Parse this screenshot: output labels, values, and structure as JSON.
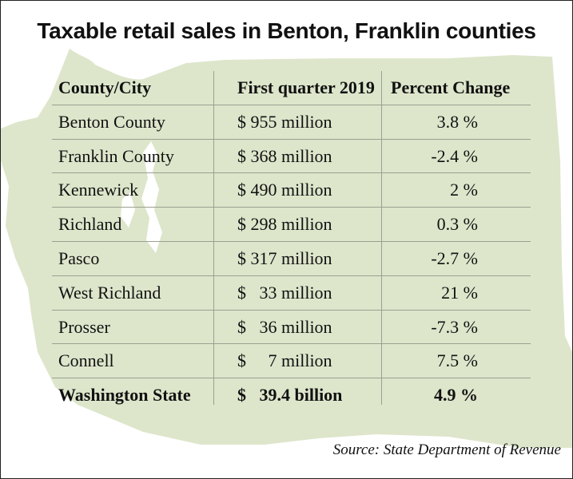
{
  "title": "Taxable retail sales in Benton, Franklin counties",
  "source": "Source: State Department of Revenue",
  "colors": {
    "map_fill": "#dde6cb",
    "rule": "#9aa08f",
    "text": "#111111"
  },
  "chart_data": {
    "type": "table",
    "columns": [
      "County/City",
      "First quarter 2019",
      "Percent Change"
    ],
    "rows": [
      {
        "name": "Benton County",
        "sales": "$ 955 million",
        "change": "3.8 %",
        "sales_value": 955,
        "sales_unit": "million",
        "change_value": 3.8
      },
      {
        "name": "Franklin County",
        "sales": "$ 368 million",
        "change": "-2.4 %",
        "sales_value": 368,
        "sales_unit": "million",
        "change_value": -2.4
      },
      {
        "name": "Kennewick",
        "sales": "$ 490 million",
        "change": "2 %",
        "sales_value": 490,
        "sales_unit": "million",
        "change_value": 2
      },
      {
        "name": "Richland",
        "sales": "$ 298 million",
        "change": "0.3 %",
        "sales_value": 298,
        "sales_unit": "million",
        "change_value": 0.3
      },
      {
        "name": "Pasco",
        "sales": "$ 317 million",
        "change": "-2.7 %",
        "sales_value": 317,
        "sales_unit": "million",
        "change_value": -2.7
      },
      {
        "name": "West Richland",
        "sales": "$   33 million",
        "change": "21 %",
        "sales_value": 33,
        "sales_unit": "million",
        "change_value": 21
      },
      {
        "name": "Prosser",
        "sales": "$   36 million",
        "change": "-7.3 %",
        "sales_value": 36,
        "sales_unit": "million",
        "change_value": -7.3
      },
      {
        "name": "Connell",
        "sales": "$     7 million",
        "change": "7.5 %",
        "sales_value": 7,
        "sales_unit": "million",
        "change_value": 7.5
      },
      {
        "name": "Washington State",
        "sales": "$   39.4 billion",
        "change": "4.9 %",
        "sales_value": 39.4,
        "sales_unit": "billion",
        "change_value": 4.9,
        "emphasis": true
      }
    ]
  }
}
